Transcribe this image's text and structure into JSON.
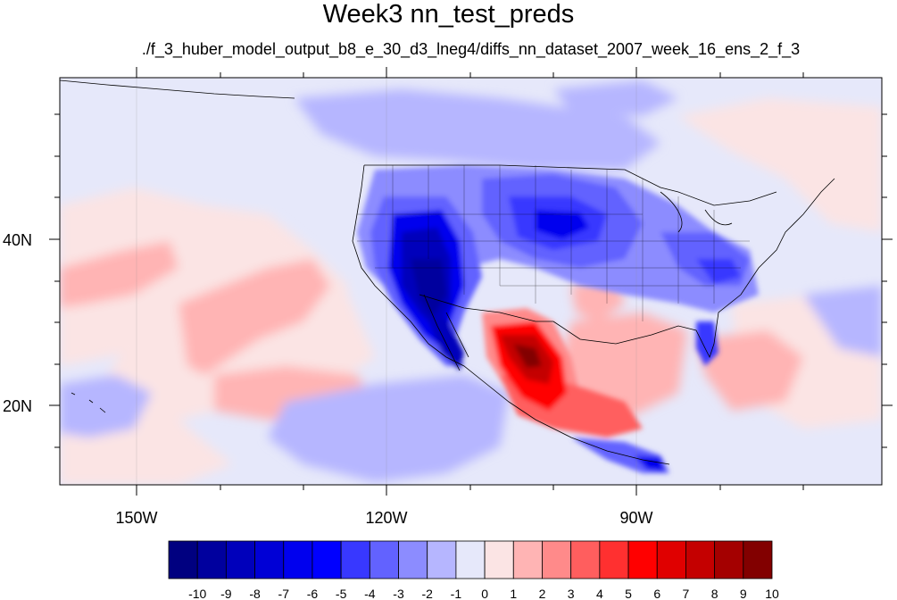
{
  "title": "Week3 nn_test_preds",
  "subtitle": "./f_3_huber_model_output_b8_e_30_d3_lneg4/diffs_nn_dataset_2007_week_16_ens_2_f_3",
  "map": {
    "lon_labels": [
      "150W",
      "120W",
      "90W"
    ],
    "lat_labels": [
      "40N",
      "20N"
    ],
    "background_color": "#e6e8fa"
  },
  "colorbar": {
    "labels": [
      "-10",
      "-9",
      "-8",
      "-7",
      "-6",
      "-5",
      "-4",
      "-3",
      "-2",
      "-1",
      "0",
      "1",
      "2",
      "3",
      "4",
      "5",
      "6",
      "7",
      "8",
      "9",
      "10"
    ],
    "colors": [
      "#000080",
      "#00009e",
      "#0000bb",
      "#0000d6",
      "#0000ee",
      "#0000ff",
      "#3838ff",
      "#6262ff",
      "#8c8cff",
      "#b6b6ff",
      "#e6e8fa",
      "#fbe4e4",
      "#ffb4b4",
      "#ff8a8a",
      "#ff5e5e",
      "#ff3030",
      "#ff0000",
      "#e00000",
      "#c40000",
      "#a40000",
      "#820000"
    ]
  }
}
